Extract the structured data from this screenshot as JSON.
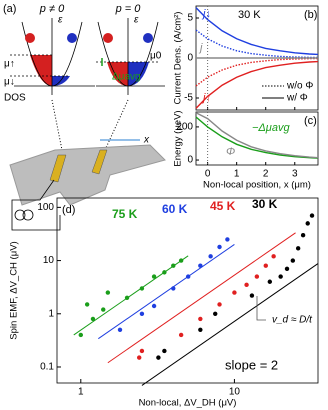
{
  "diagram": {
    "label": "(a)",
    "left_title": "p ≠ 0",
    "right_title": "p = 0",
    "energy": "ε",
    "mu_up": "μ↑",
    "mu_down": "μ↓",
    "mu0": "μ0",
    "delta_mu": "Δμavg",
    "dos": "DOS",
    "position": "x"
  },
  "chart_data": [
    {
      "type": "line",
      "label": "(b)",
      "annotation": "30 K",
      "ylabel": "Current Dens. (A/cm²)",
      "x": [
        -0.4,
        0,
        0.5,
        1,
        1.5,
        2,
        2.5,
        3,
        3.5,
        3.8
      ],
      "xlim": [
        -0.4,
        3.8
      ],
      "ylim": [
        -6.5,
        6.5
      ],
      "yticks": [
        -5,
        0,
        5
      ],
      "series": [
        {
          "name": "j↓",
          "color": "#1f3fe0",
          "dash": "solid",
          "values": [
            6.3,
            4.8,
            3.4,
            2.4,
            1.7,
            1.2,
            0.9,
            0.65,
            0.5,
            0.45
          ]
        },
        {
          "color": "#1f3fe0",
          "dash": "dotted",
          "values": [
            3.5,
            2.4,
            1.5,
            0.9,
            0.55,
            0.35,
            0.2,
            0.12,
            0.08,
            0.06
          ]
        },
        {
          "name": "j↑",
          "color": "#e02020",
          "dash": "solid",
          "values": [
            -6.3,
            -4.8,
            -3.4,
            -2.4,
            -1.7,
            -1.2,
            -0.9,
            -0.65,
            -0.5,
            -0.45
          ]
        },
        {
          "color": "#e02020",
          "dash": "dotted",
          "values": [
            -3.5,
            -2.4,
            -1.5,
            -0.9,
            -0.55,
            -0.35,
            -0.2,
            -0.12,
            -0.08,
            -0.06
          ]
        },
        {
          "name": "j",
          "color": "#888888",
          "dash": "solid",
          "values": [
            0,
            0,
            0,
            0,
            0,
            0,
            0,
            0,
            0,
            0
          ]
        }
      ],
      "legend": [
        {
          "name": "w/o Φ",
          "dash": "dotted"
        },
        {
          "name": "w/ Φ",
          "dash": "solid"
        }
      ]
    },
    {
      "type": "line",
      "label": "(c)",
      "ylabel": "Energy (μeV)",
      "xlabel": "Non-local position, x (μm)",
      "x": [
        -0.4,
        0,
        0.5,
        1,
        1.5,
        2,
        2.5,
        3,
        3.5,
        3.8
      ],
      "xlim": [
        -0.4,
        3.8
      ],
      "xticks": [
        0,
        1,
        2,
        3
      ],
      "ylim": [
        -30,
        290
      ],
      "yticks": [
        0,
        200
      ],
      "series": [
        {
          "name": "−Δμavg",
          "color": "#1a9e1a",
          "dash": "solid",
          "values": [
            260,
            200,
            140,
            95,
            65,
            45,
            30,
            20,
            14,
            11
          ]
        },
        {
          "name": "Φ",
          "color": "#888888",
          "dash": "solid",
          "values": [
            285,
            250,
            175,
            120,
            80,
            55,
            38,
            26,
            18,
            14
          ]
        }
      ]
    },
    {
      "type": "scatter",
      "label": "(d)",
      "xlabel": "Non-local, ΔV_DH (μV)",
      "ylabel": "Spin EMF, ΔV_CH (μV)",
      "log_x": true,
      "log_y": true,
      "xlim": [
        0.7,
        35
      ],
      "ylim": [
        0.05,
        150
      ],
      "xticks": [
        1,
        10
      ],
      "yticks": [
        0.1,
        1,
        10,
        100
      ],
      "annotations": [
        "slope = 2",
        "v_d ≈ D/t"
      ],
      "series": [
        {
          "name": "75 K",
          "color": "#1a9e1a",
          "x": [
            1,
            1.1,
            1.2,
            1.4,
            1.5,
            2,
            2.5,
            3,
            3.5,
            4,
            4.5
          ],
          "values": [
            0.4,
            1.5,
            0.8,
            1.2,
            2.5,
            2,
            3,
            5,
            6,
            8,
            10
          ],
          "fit_x": [
            0.9,
            5
          ],
          "fit_values": [
            0.4,
            12.3
          ]
        },
        {
          "name": "60 K",
          "color": "#1f3fe0",
          "x": [
            1.8,
            2.5,
            3,
            4,
            5,
            6,
            7,
            8,
            9
          ],
          "values": [
            0.5,
            1,
            1.4,
            3,
            5,
            8,
            12,
            18,
            25
          ],
          "fit_x": [
            1.3,
            10
          ],
          "fit_values": [
            0.34,
            20.1
          ]
        },
        {
          "name": "45 K",
          "color": "#e02020",
          "x": [
            2.4,
            2.5,
            4.5,
            6,
            8,
            10,
            12,
            14,
            16,
            18
          ],
          "values": [
            0.15,
            0.2,
            0.4,
            0.8,
            1.5,
            2.5,
            3.5,
            5,
            8,
            12
          ],
          "fit_x": [
            1.5,
            25
          ],
          "fit_values": [
            0.12,
            33.3
          ]
        },
        {
          "name": "30 K",
          "color": "#000000",
          "x": [
            3.2,
            3.5,
            6,
            7.5,
            13,
            17,
            20,
            22,
            24,
            26,
            28,
            30,
            32
          ],
          "values": [
            0.15,
            0.2,
            0.5,
            1,
            2.2,
            4,
            5,
            7,
            10,
            17,
            30,
            50,
            70
          ],
          "fit_x": [
            2.5,
            35
          ],
          "fit_values": [
            0.045,
            8.8
          ]
        }
      ]
    }
  ]
}
